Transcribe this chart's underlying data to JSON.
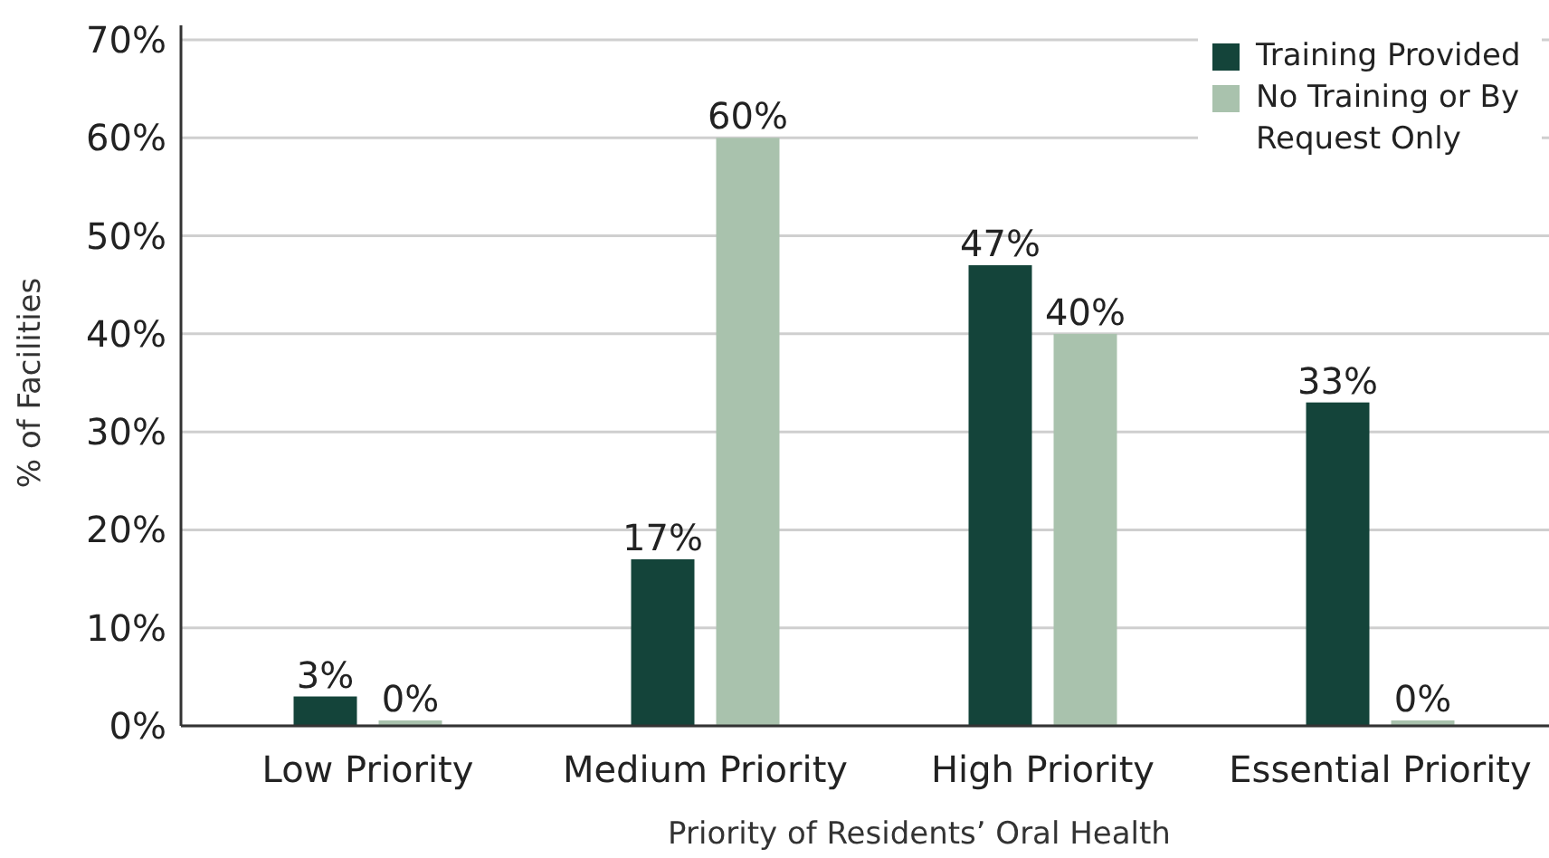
{
  "chart_data": {
    "type": "bar",
    "xlabel": "Priority of Residents’ Oral Health",
    "ylabel": "% of Facilities",
    "categories": [
      "Low Priority",
      "Medium Priority",
      "High Priority",
      "Essential Priority"
    ],
    "series": [
      {
        "name": "Training Provided",
        "color": "#14443a",
        "values": [
          3,
          17,
          47,
          33
        ],
        "value_labels": [
          "3%",
          "17%",
          "47%",
          "33%"
        ]
      },
      {
        "name": "No Training or By Request Only",
        "color": "#a9c2ad",
        "values": [
          0,
          60,
          40,
          0
        ],
        "value_labels": [
          "0%",
          "60%",
          "40%",
          "0%"
        ]
      }
    ],
    "ylim": [
      0,
      70
    ],
    "yticks": [
      {
        "value": 0,
        "label": "0%"
      },
      {
        "value": 10,
        "label": "10%"
      },
      {
        "value": 20,
        "label": "20%"
      },
      {
        "value": 30,
        "label": "30%"
      },
      {
        "value": 40,
        "label": "40%"
      },
      {
        "value": 50,
        "label": "50%"
      },
      {
        "value": 60,
        "label": "60%"
      },
      {
        "value": 70,
        "label": "70%"
      }
    ],
    "grid": "y",
    "legend": "top right"
  }
}
